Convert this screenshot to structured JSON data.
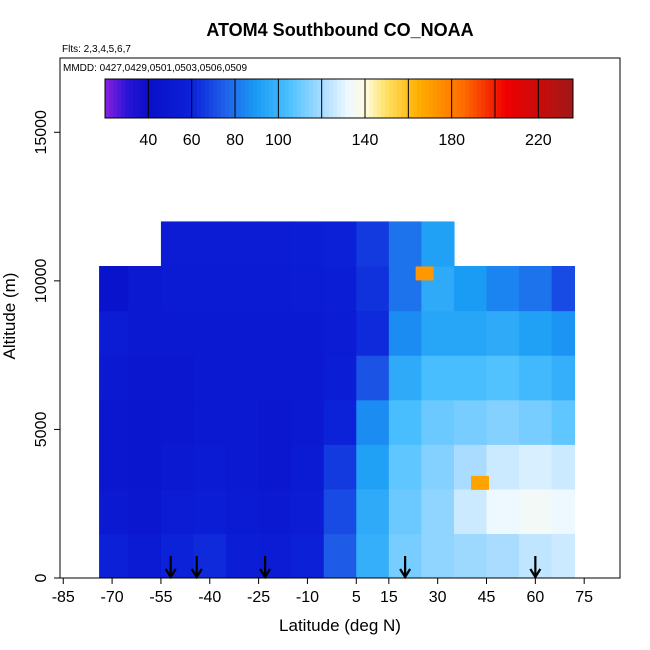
{
  "chart_data": {
    "type": "heatmap",
    "title": "ATOM4 Southbound CO_NOAA",
    "flights_text": "Flts: 2,3,4,5,6,7",
    "dates_text": "MMDD: 0427,0429,0501,0503,0506,0509",
    "xlabel": "Latitude (deg N)",
    "ylabel": "Altitude (m)",
    "x_ticks": [
      -85,
      -70,
      -55,
      -40,
      -25,
      -10,
      5,
      15,
      30,
      45,
      60,
      75
    ],
    "x_tick_labels": [
      "-85",
      "-70",
      "-55",
      "-40",
      "-25",
      "-10",
      "5",
      "15",
      "30",
      "45",
      "60",
      "75"
    ],
    "y_ticks": [
      0,
      5000,
      10000,
      15000
    ],
    "y_tick_labels": [
      "0",
      "5000",
      "10000",
      "15000"
    ],
    "xlim": [
      -86,
      86
    ],
    "ylim": [
      0,
      17500
    ],
    "colorbar": {
      "range": [
        20,
        236
      ],
      "tick_values": [
        40,
        60,
        80,
        100,
        140,
        180,
        220
      ],
      "tick_labels": [
        "40",
        "60",
        "80",
        "100",
        "140",
        "180",
        "220"
      ],
      "boundaries": [
        40,
        60,
        80,
        100,
        120,
        140,
        160,
        180,
        200,
        220
      ],
      "stops": [
        {
          "v": 20,
          "c": "#8a1fe0"
        },
        {
          "v": 30,
          "c": "#2a14d6"
        },
        {
          "v": 40,
          "c": "#0a0fc9"
        },
        {
          "v": 60,
          "c": "#0b22d9"
        },
        {
          "v": 75,
          "c": "#1f5fe8"
        },
        {
          "v": 90,
          "c": "#1a9cf5"
        },
        {
          "v": 105,
          "c": "#4cc0ff"
        },
        {
          "v": 120,
          "c": "#a9dcff"
        },
        {
          "v": 132,
          "c": "#eef8ff"
        },
        {
          "v": 140,
          "c": "#fffbe0"
        },
        {
          "v": 150,
          "c": "#ffe060"
        },
        {
          "v": 165,
          "c": "#ffad00"
        },
        {
          "v": 185,
          "c": "#ff6d00"
        },
        {
          "v": 205,
          "c": "#ef0000"
        },
        {
          "v": 236,
          "c": "#a01818"
        }
      ]
    },
    "profile_arrows_lat": [
      -52,
      -44,
      -23,
      20,
      60
    ],
    "field": {
      "latitude_edges": [
        -74,
        -65,
        -55,
        -45,
        -35,
        -25,
        -15,
        -5,
        5,
        15,
        25,
        35,
        45,
        55,
        65,
        72
      ],
      "altitude_edges": [
        0,
        1500,
        3000,
        4500,
        6000,
        7500,
        9000,
        10500,
        12000
      ],
      "co_ppb": [
        [
          58,
          52,
          60,
          62,
          56,
          54,
          58,
          74,
          98,
          112,
          116,
          118,
          120,
          124,
          126
        ],
        [
          50,
          48,
          54,
          56,
          52,
          50,
          54,
          70,
          96,
          110,
          116,
          126,
          132,
          134,
          132
        ],
        [
          48,
          46,
          50,
          52,
          50,
          48,
          52,
          66,
          92,
          108,
          114,
          120,
          126,
          128,
          126
        ],
        [
          48,
          46,
          48,
          50,
          50,
          48,
          50,
          60,
          86,
          104,
          110,
          112,
          114,
          112,
          108
        ],
        [
          50,
          48,
          48,
          50,
          50,
          50,
          50,
          56,
          72,
          96,
          104,
          104,
          106,
          102,
          98
        ],
        [
          54,
          50,
          50,
          50,
          50,
          50,
          50,
          54,
          62,
          86,
          94,
          94,
          96,
          92,
          88
        ],
        [
          44,
          50,
          52,
          52,
          52,
          52,
          54,
          56,
          64,
          80,
          96,
          90,
          84,
          80,
          70
        ],
        [
          null,
          null,
          54,
          54,
          54,
          54,
          56,
          58,
          66,
          80,
          92,
          null,
          null,
          null,
          null
        ]
      ]
    },
    "hotspots": [
      {
        "lat": 26,
        "alt": 10250,
        "co_ppb": 172
      },
      {
        "lat": 43,
        "alt": 3200,
        "co_ppb": 168
      }
    ]
  }
}
